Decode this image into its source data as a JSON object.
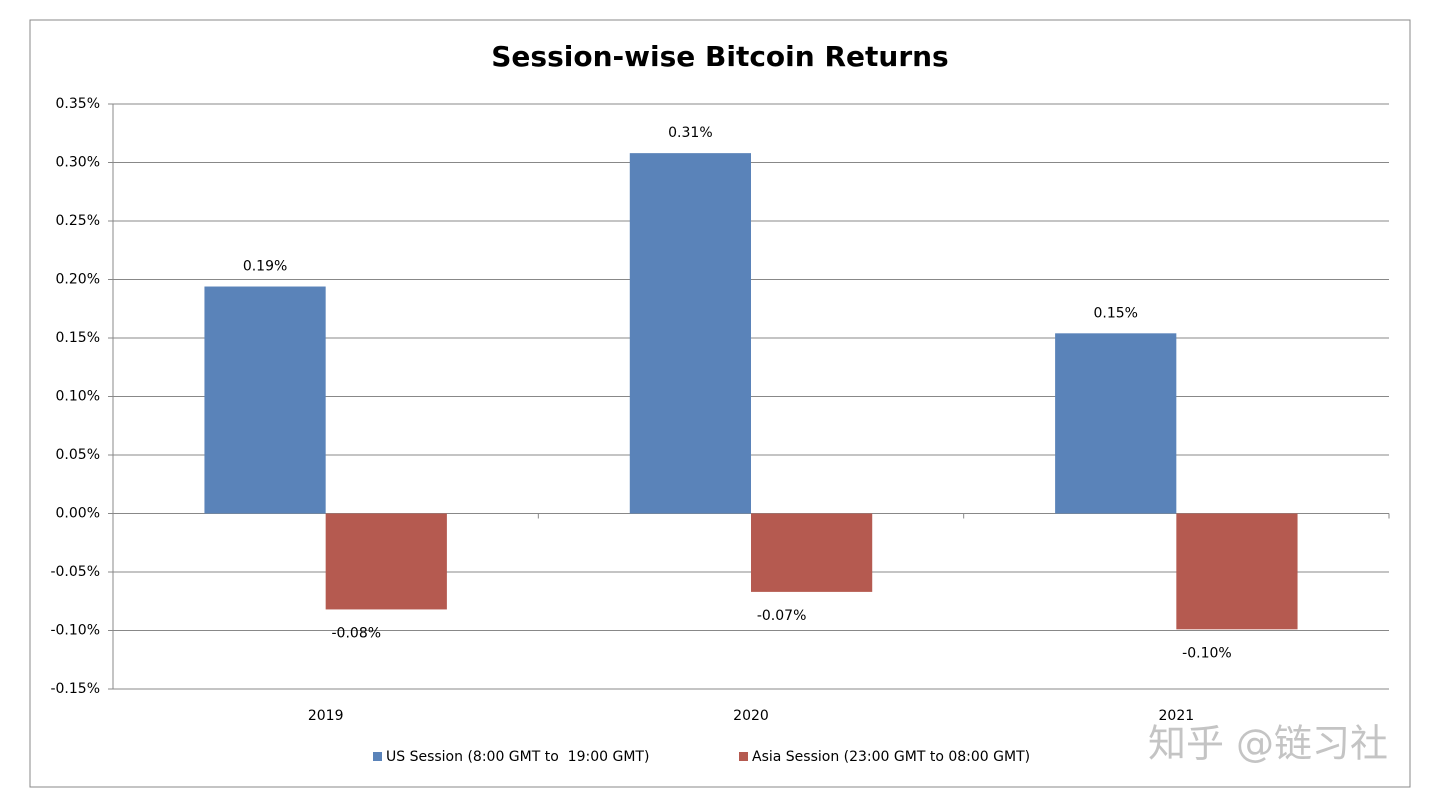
{
  "chart_data": {
    "type": "bar",
    "title": "Session-wise Bitcoin Returns",
    "categories": [
      "2019",
      "2020",
      "2021"
    ],
    "series": [
      {
        "name": "US Session (8:00 GMT to  19:00 GMT)",
        "color": "#5a83b9",
        "values": [
          0.194,
          0.308,
          0.154
        ],
        "value_labels": [
          "0.19%",
          "0.31%",
          "0.15%"
        ]
      },
      {
        "name": "Asia Session (23:00 GMT to 08:00 GMT)",
        "color": "#b55a50",
        "values": [
          -0.082,
          -0.067,
          -0.099
        ],
        "value_labels": [
          "-0.08%",
          "-0.07%",
          "-0.10%"
        ]
      }
    ],
    "ylim": [
      -0.15,
      0.35
    ],
    "yticks": [
      {
        "value": -0.15,
        "label": "-0.15%"
      },
      {
        "value": -0.1,
        "label": "-0.10%"
      },
      {
        "value": -0.05,
        "label": "-0.05%"
      },
      {
        "value": 0,
        "label": "0.00%"
      },
      {
        "value": 0.05,
        "label": "0.05%"
      },
      {
        "value": 0.1,
        "label": "0.10%"
      },
      {
        "value": 0.15,
        "label": "0.15%"
      },
      {
        "value": 0.2,
        "label": "0.20%"
      },
      {
        "value": 0.25,
        "label": "0.25%"
      },
      {
        "value": 0.3,
        "label": "0.30%"
      },
      {
        "value": 0.35,
        "label": "0.35%"
      }
    ],
    "grid": true,
    "legend": "bottom",
    "watermark": "知乎 @链习社"
  }
}
